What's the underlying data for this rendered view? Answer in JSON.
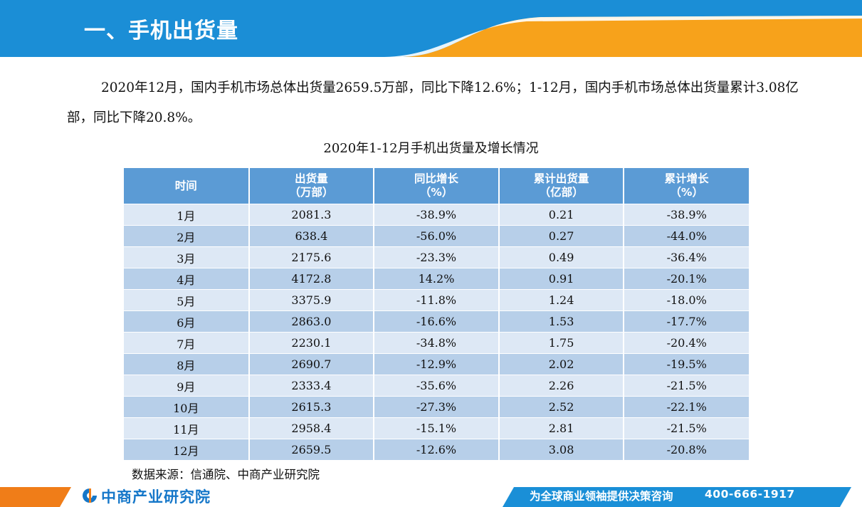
{
  "header": {
    "title": "一、手机出货量"
  },
  "paragraph": "2020年12月，国内手机市场总体出货量2659.5万部，同比下降12.6%；1-12月，国内手机市场总体出货量累计3.08亿部，同比下降20.8%。",
  "table": {
    "title": "2020年1-12月手机出货量及增长情况",
    "headers": [
      {
        "line1": "时间",
        "line2": ""
      },
      {
        "line1": "出货量",
        "line2": "（万部）"
      },
      {
        "line1": "同比增长",
        "line2": "（%）"
      },
      {
        "line1": "累计出货量",
        "line2": "（亿部）"
      },
      {
        "line1": "累计增长",
        "line2": "（%）"
      }
    ],
    "rows": [
      [
        "1月",
        "2081.3",
        "-38.9%",
        "0.21",
        "-38.9%"
      ],
      [
        "2月",
        "638.4",
        "-56.0%",
        "0.27",
        "-44.0%"
      ],
      [
        "3月",
        "2175.6",
        "-23.3%",
        "0.49",
        "-36.4%"
      ],
      [
        "4月",
        "4172.8",
        "14.2%",
        "0.91",
        "-20.1%"
      ],
      [
        "5月",
        "3375.9",
        "-11.8%",
        "1.24",
        "-18.0%"
      ],
      [
        "6月",
        "2863.0",
        "-16.6%",
        "1.53",
        "-17.7%"
      ],
      [
        "7月",
        "2230.1",
        "-34.8%",
        "1.75",
        "-20.4%"
      ],
      [
        "8月",
        "2690.7",
        "-12.9%",
        "2.02",
        "-19.5%"
      ],
      [
        "9月",
        "2333.4",
        "-35.6%",
        "2.26",
        "-21.5%"
      ],
      [
        "10月",
        "2615.3",
        "-27.3%",
        "2.52",
        "-22.1%"
      ],
      [
        "11月",
        "2958.4",
        "-15.1%",
        "2.81",
        "-21.5%"
      ],
      [
        "12月",
        "2659.5",
        "-12.6%",
        "3.08",
        "-20.8%"
      ]
    ]
  },
  "source": "数据来源：信通院、中商产业研究院",
  "footer": {
    "logo_text": "中商产业研究院",
    "slogan": "为全球商业领袖提供决策咨询",
    "phone": "400-666-1917"
  },
  "colors": {
    "header_blue": "#1b8ed6",
    "header_orange": "#f7a21b",
    "table_header": "#5b9bd5",
    "row_light": "#dde8f5",
    "row_dark": "#b7cfe9",
    "footer_blue": "#1a8fd7",
    "footer_orange": "#f07d18"
  }
}
